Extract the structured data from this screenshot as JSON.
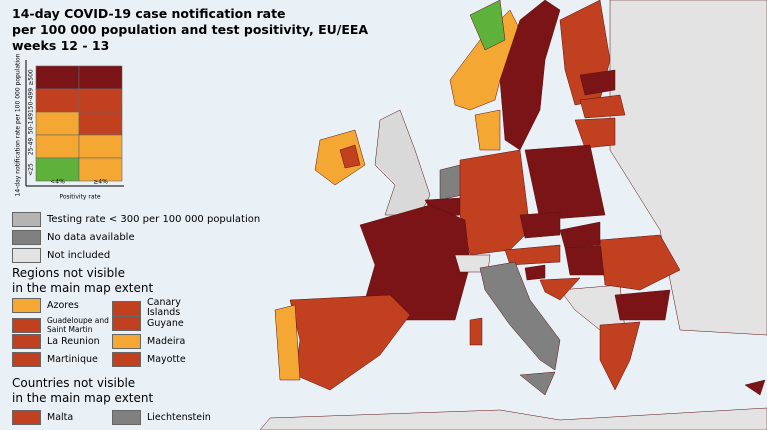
{
  "title": [
    "14-day COVID-19 case notification rate",
    "per 100 000 population and test positivity, EU/EEA",
    "weeks 12 - 13"
  ],
  "matrix": {
    "y_axis_label": "14-day notification rate per 100 000 population",
    "row_labels": [
      "≥500",
      "150-499",
      "50-149",
      "25-49",
      "<25"
    ],
    "column_labels": [
      "<4%",
      "≥4%"
    ],
    "x_axis_label": "Positivity rate",
    "cells": [
      [
        "#7b1416",
        "#7b1416"
      ],
      [
        "#c1401f",
        "#c1401f"
      ],
      [
        "#f5a733",
        "#c1401f"
      ],
      [
        "#f5a733",
        "#f5a733"
      ],
      [
        "#5eb13a",
        "#f5a733"
      ]
    ]
  },
  "legend": [
    {
      "label": "Testing rate < 300 per 100 000 population",
      "color": "#b4b4b4"
    },
    {
      "label": "No data available",
      "color": "#808080"
    },
    {
      "label": "Not included",
      "color": "#e3e3e3"
    }
  ],
  "regions": {
    "title": [
      "Regions not visible",
      "in the main map extent"
    ],
    "items": [
      {
        "label": "Azores",
        "color": "#f5a733"
      },
      {
        "label": "Canary Islands",
        "color": "#c1401f"
      },
      {
        "label": "Guadeloupe and Saint Martin",
        "color": "#c1401f"
      },
      {
        "label": "Guyane",
        "color": "#c1401f"
      },
      {
        "label": "La Reunion",
        "color": "#c1401f"
      },
      {
        "label": "Madeira",
        "color": "#f5a733"
      },
      {
        "label": "Martinique",
        "color": "#c1401f"
      },
      {
        "label": "Mayotte",
        "color": "#c1401f"
      }
    ]
  },
  "countries": {
    "title": [
      "Countries not visible",
      "in the main map extent"
    ],
    "items": [
      {
        "label": "Malta",
        "color": "#c1401f"
      },
      {
        "label": "Liechtenstein",
        "color": "#808080"
      }
    ]
  }
}
